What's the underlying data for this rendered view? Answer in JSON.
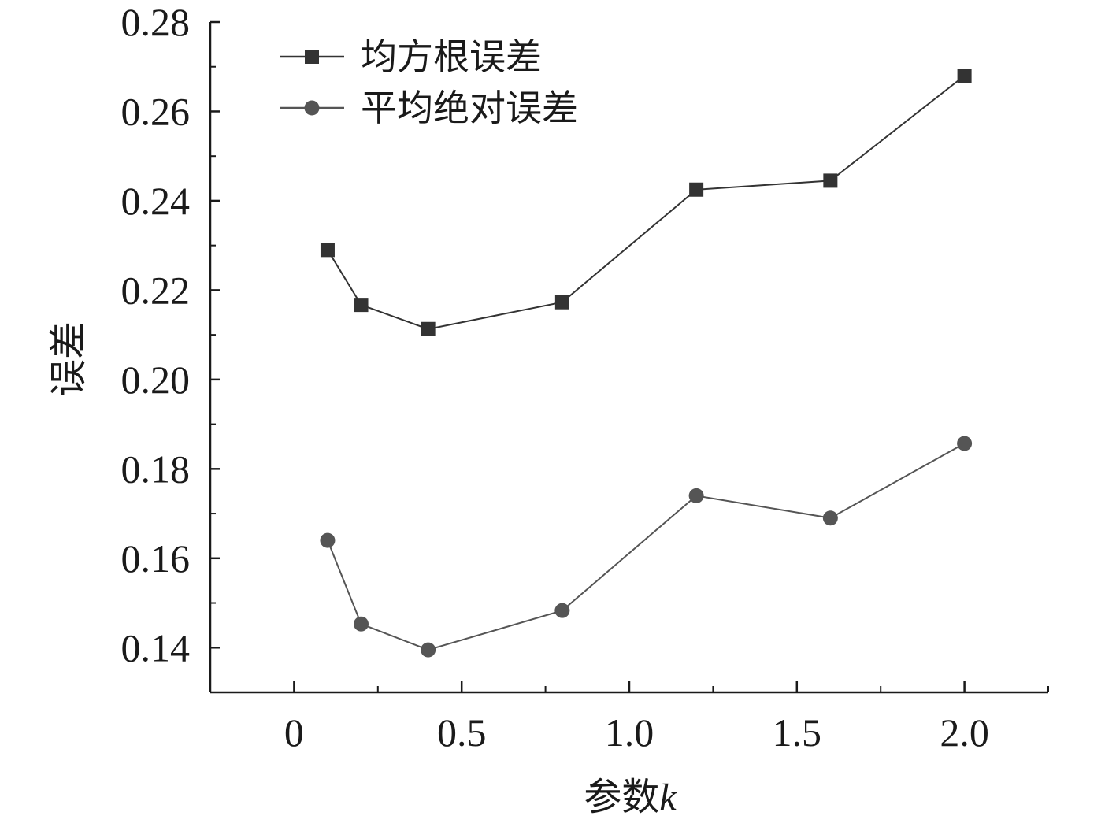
{
  "chart_data": {
    "type": "line",
    "xlabel_text": "参数",
    "xlabel_var": "k",
    "ylabel": "误差",
    "xlim": [
      -0.25,
      2.25
    ],
    "ylim": [
      0.13,
      0.28
    ],
    "x_ticks": [
      0,
      0.5,
      1.0,
      1.5,
      2.0
    ],
    "x_tick_labels": [
      "0",
      "0.5",
      "1.0",
      "1.5",
      "2.0"
    ],
    "y_ticks": [
      0.14,
      0.16,
      0.18,
      0.2,
      0.22,
      0.24,
      0.26,
      0.28
    ],
    "y_tick_labels": [
      "0.14",
      "0.16",
      "0.18",
      "0.20",
      "0.22",
      "0.24",
      "0.26",
      "0.28"
    ],
    "grid": false,
    "legend_position": "top-left",
    "series": [
      {
        "name": "均方根误差",
        "marker": "square",
        "color": "#333333",
        "x": [
          0.1,
          0.2,
          0.4,
          0.8,
          1.2,
          1.6,
          2.0
        ],
        "y": [
          0.229,
          0.2167,
          0.2113,
          0.2173,
          0.2425,
          0.2445,
          0.268
        ]
      },
      {
        "name": "平均绝对误差",
        "marker": "circle",
        "color": "#555555",
        "x": [
          0.1,
          0.2,
          0.4,
          0.8,
          1.2,
          1.6,
          2.0
        ],
        "y": [
          0.164,
          0.1453,
          0.1395,
          0.1483,
          0.174,
          0.169,
          0.1857
        ]
      }
    ]
  }
}
